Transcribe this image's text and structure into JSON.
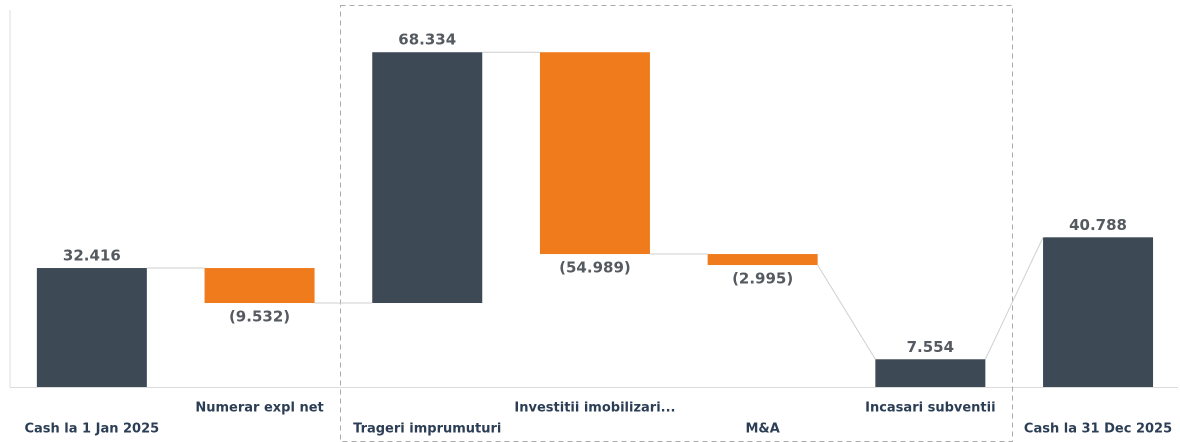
{
  "chart_data": {
    "type": "waterfall",
    "categories": [
      "Cash la 1 Jan 2025",
      "Numerar expl net",
      "Trageri imprumuturi",
      "Investitii imobilizari...",
      "M&A",
      "Incasari subventii",
      "Cash la 31 Dec 2025"
    ],
    "values": [
      32.416,
      -9.532,
      68.334,
      -54.989,
      -2.995,
      7.554,
      40.788
    ],
    "value_labels": [
      "32.416",
      "(9.532)",
      "68.334",
      "(54.989)",
      "(2.995)",
      "7.554",
      "40.788"
    ],
    "measure": [
      "total",
      "relative",
      "relative",
      "relative",
      "relative",
      "absolute",
      "total"
    ],
    "colors": {
      "total": "#3d4955",
      "increase": "#3d4955",
      "decrease": "#f07b1d"
    }
  }
}
